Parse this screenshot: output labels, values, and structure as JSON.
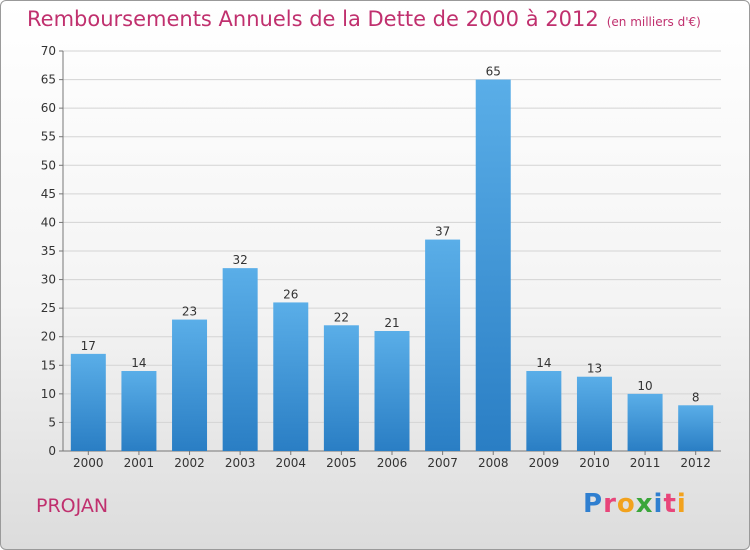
{
  "header": {
    "title": "Remboursements Annuels de la Dette de 2000 à 2012",
    "subtitle": "(en milliers d'€)"
  },
  "footer": {
    "commune": "PROJAN",
    "brand": "Proxiti",
    "brand_letters": [
      {
        "char": "P",
        "color": "#2f7fd0"
      },
      {
        "char": "r",
        "color": "#e8457a"
      },
      {
        "char": "o",
        "color": "#f2a21d"
      },
      {
        "char": "x",
        "color": "#3aa63a"
      },
      {
        "char": "i",
        "color": "#2f7fd0"
      },
      {
        "char": "t",
        "color": "#e8457a"
      },
      {
        "char": "i",
        "color": "#f2a21d"
      }
    ]
  },
  "colors": {
    "bar_top": "#5aaee8",
    "bar_bottom": "#2a7ec4",
    "title": "#c0306e",
    "grid": "#d4d4d4"
  },
  "chart_data": {
    "type": "bar",
    "categories": [
      "2000",
      "2001",
      "2002",
      "2003",
      "2004",
      "2005",
      "2006",
      "2007",
      "2008",
      "2009",
      "2010",
      "2011",
      "2012"
    ],
    "values": [
      17,
      14,
      23,
      32,
      26,
      22,
      21,
      37,
      65,
      14,
      13,
      10,
      8
    ],
    "ylim": [
      0,
      70
    ],
    "yticks": [
      0,
      5,
      10,
      15,
      20,
      25,
      30,
      35,
      40,
      45,
      50,
      55,
      60,
      65,
      70
    ],
    "grid": true,
    "data_labels": true
  }
}
